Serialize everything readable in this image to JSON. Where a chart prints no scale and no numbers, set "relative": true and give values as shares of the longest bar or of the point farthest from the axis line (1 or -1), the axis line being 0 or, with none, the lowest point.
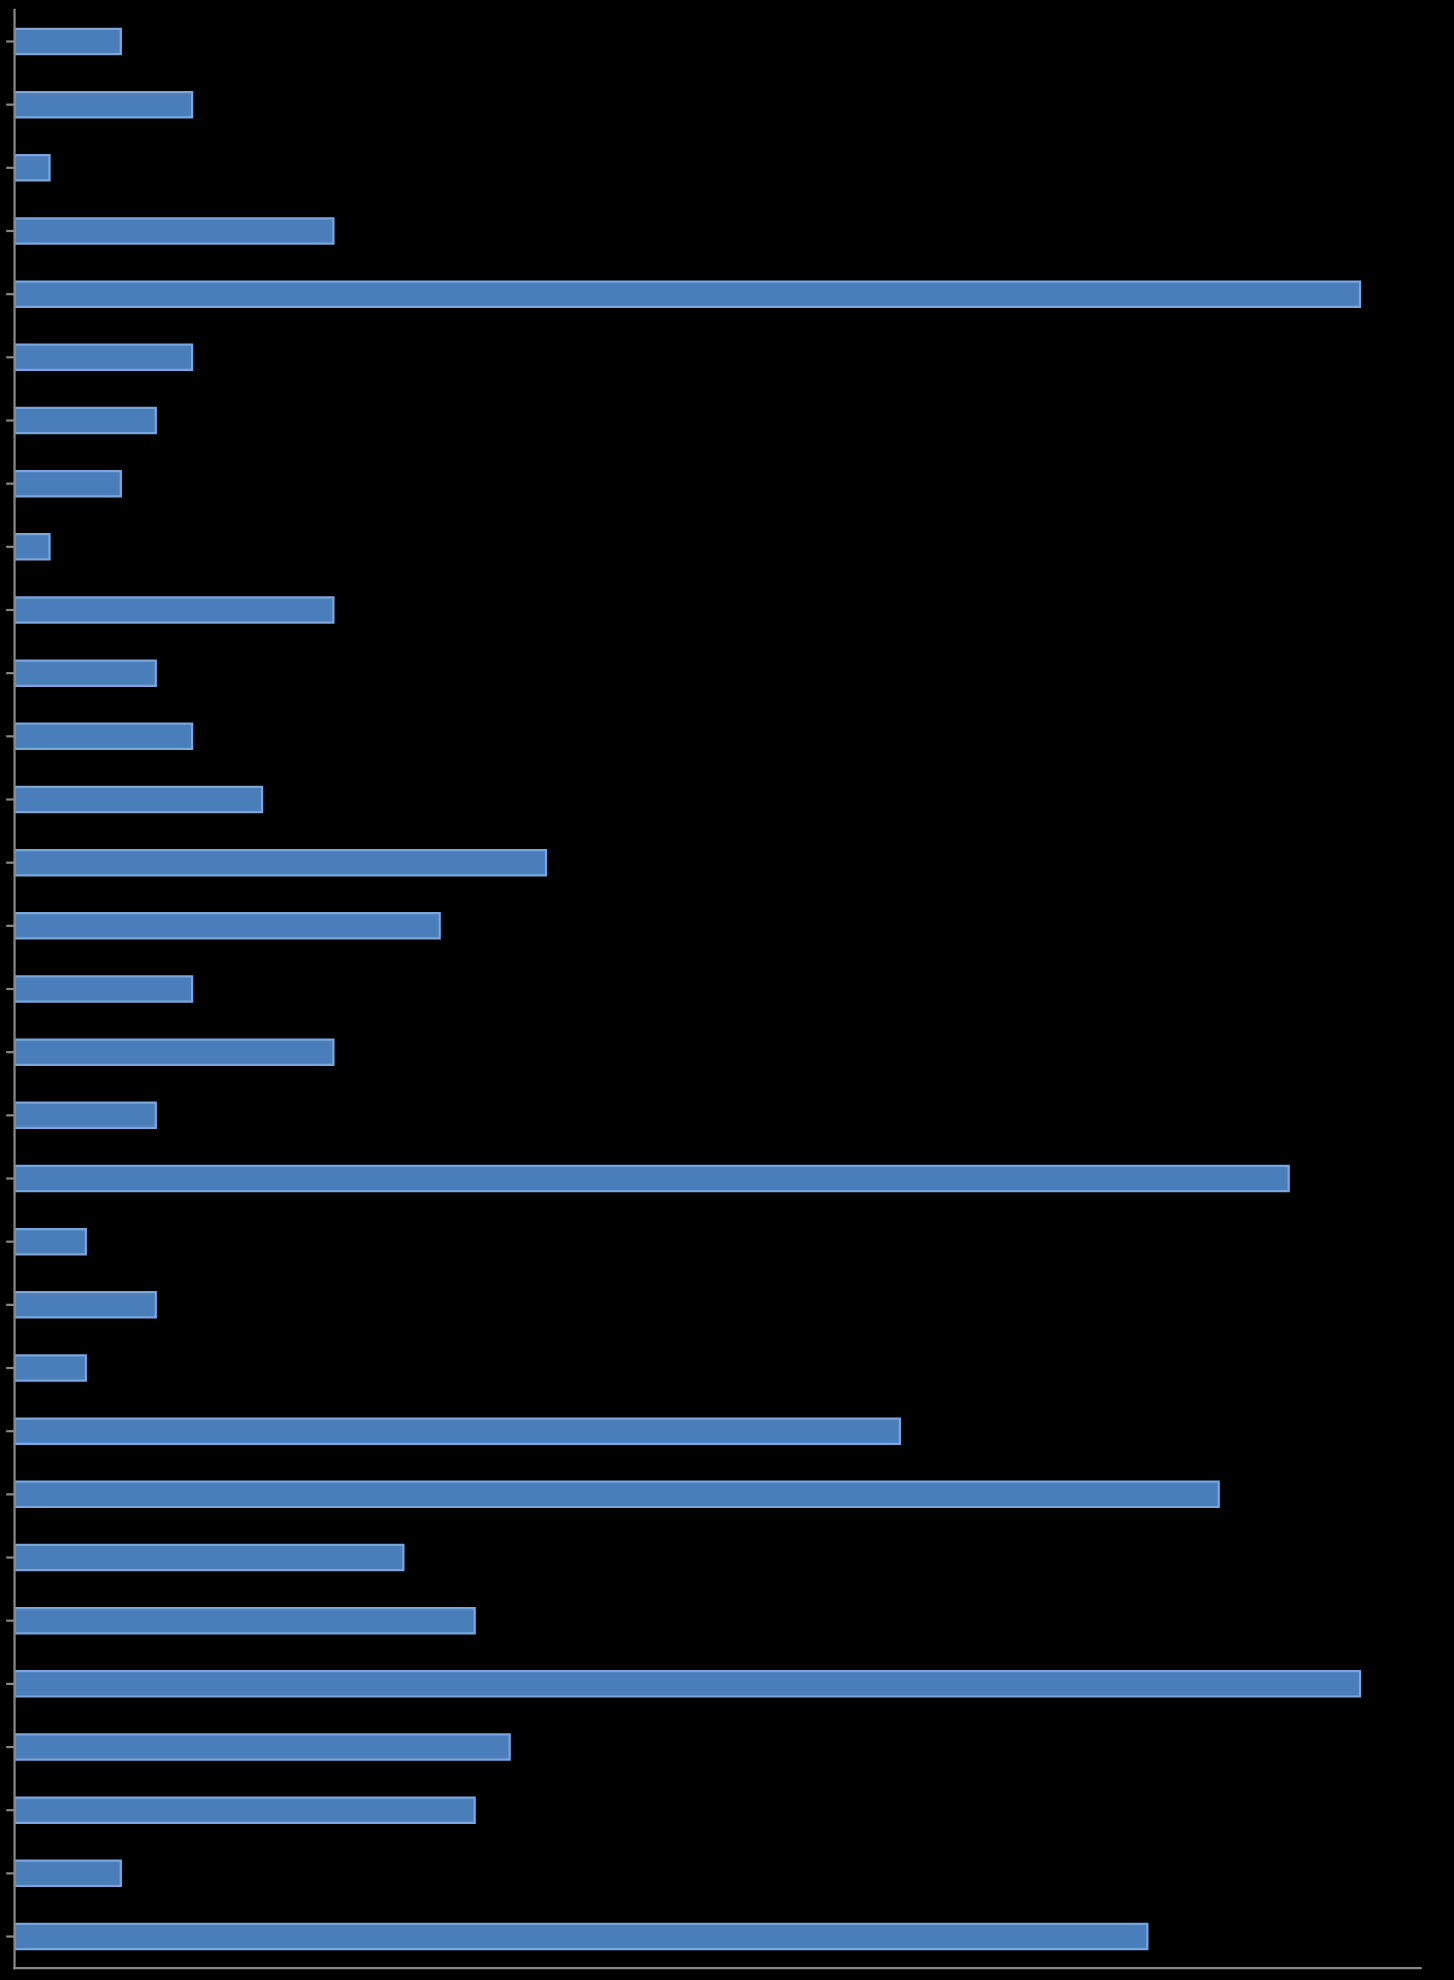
{
  "chart_data": {
    "type": "bar",
    "orientation": "horizontal",
    "relative": true,
    "categories": [
      null,
      null,
      null,
      null,
      null,
      null,
      null,
      null,
      null,
      null,
      null,
      null,
      null,
      null,
      null,
      null,
      null,
      null,
      null,
      null,
      null,
      null,
      null,
      null,
      null,
      null,
      null,
      null,
      null,
      null,
      null
    ],
    "values": [
      0.079,
      0.132,
      0.026,
      0.237,
      1,
      0.132,
      0.105,
      0.079,
      0.026,
      0.237,
      0.105,
      0.132,
      0.184,
      0.395,
      0.316,
      0.132,
      0.237,
      0.105,
      0.947,
      0.053,
      0.105,
      0.053,
      0.658,
      0.895,
      0.289,
      0.342,
      1,
      0.368,
      0.342,
      0.079,
      0.842
    ],
    "color": "#4a7ebb",
    "grid": false,
    "legend": false
  }
}
